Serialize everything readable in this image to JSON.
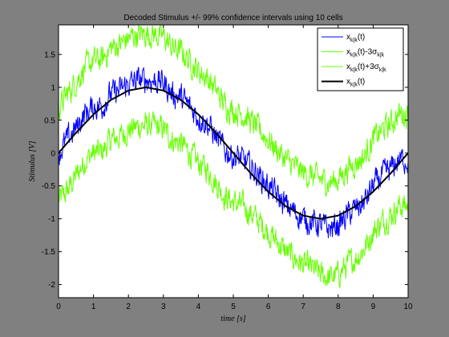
{
  "colors": {
    "figure_background": "#808080",
    "axes_background": "#ffffff",
    "estimate": "#0000ff",
    "lower_bound": "#66ff00",
    "upper_bound": "#66ff00",
    "true_signal": "#000000"
  },
  "chart_data": {
    "type": "line",
    "title": "Decoded Stimulus +/- 99% confidence intervals using 10 cells",
    "xlabel": "time [s]",
    "ylabel": "Stimulus [V]",
    "xlim": [
      0,
      10
    ],
    "ylim": [
      -2.2,
      1.95
    ],
    "xticks": [
      "0",
      "1",
      "2",
      "3",
      "4",
      "5",
      "6",
      "7",
      "8",
      "9",
      "10"
    ],
    "yticks": [
      "-2",
      "-1.5",
      "-1",
      "-0.5",
      "0",
      "0.5",
      "1",
      "1.5"
    ],
    "grid": false,
    "legend_position": "top-right",
    "legend": [
      {
        "main": "x",
        "sub": "k|k",
        "suffix": "(t)",
        "sigma": ""
      },
      {
        "main": "x",
        "sub": "k|k",
        "suffix": "(t)-3",
        "sigma": "σ",
        "sigma_sub": "k|k"
      },
      {
        "main": "x",
        "sub": "k|k",
        "suffix": "(t)+3",
        "sigma": "σ",
        "sigma_sub": "k|k"
      },
      {
        "main": "x",
        "sub": "k|k",
        "suffix": "(t)",
        "sigma": ""
      }
    ],
    "series": [
      {
        "role": "estimate",
        "x": [
          0,
          0.25,
          0.5,
          0.75,
          1,
          1.25,
          1.5,
          1.75,
          2,
          2.25,
          2.5,
          2.75,
          3,
          3.25,
          3.5,
          3.75,
          4,
          4.25,
          4.5,
          4.75,
          5,
          5.25,
          5.5,
          5.75,
          6,
          6.25,
          6.5,
          6.75,
          7,
          7.25,
          7.5,
          7.75,
          8,
          8.25,
          8.5,
          8.75,
          9,
          9.25,
          9.5,
          9.75,
          10
        ],
        "y": [
          -0.02,
          0.2,
          0.38,
          0.6,
          0.7,
          0.72,
          0.9,
          0.95,
          1.05,
          1.1,
          1.12,
          1.1,
          1.07,
          0.9,
          0.85,
          0.7,
          0.55,
          0.45,
          0.25,
          0.05,
          -0.05,
          -0.1,
          -0.22,
          -0.35,
          -0.5,
          -0.65,
          -0.8,
          -0.9,
          -1.0,
          -1.05,
          -1.1,
          -1.15,
          -1.1,
          -0.95,
          -0.85,
          -0.75,
          -0.5,
          -0.35,
          -0.25,
          -0.1,
          -0.1
        ]
      },
      {
        "role": "lower_bound",
        "x": [
          0,
          0.25,
          0.5,
          0.75,
          1,
          1.25,
          1.5,
          1.75,
          2,
          2.25,
          2.5,
          2.75,
          3,
          3.25,
          3.5,
          3.75,
          4,
          4.25,
          4.5,
          4.75,
          5,
          5.25,
          5.5,
          5.75,
          6,
          6.25,
          6.5,
          6.75,
          7,
          7.25,
          7.5,
          7.75,
          8,
          8.25,
          8.5,
          8.75,
          9,
          9.25,
          9.5,
          9.75,
          10
        ],
        "y": [
          -0.72,
          -0.58,
          -0.35,
          -0.12,
          0.0,
          0.02,
          0.2,
          0.25,
          0.35,
          0.4,
          0.42,
          0.4,
          0.37,
          0.2,
          0.15,
          0.0,
          -0.15,
          -0.25,
          -0.45,
          -0.65,
          -0.75,
          -0.8,
          -0.92,
          -1.05,
          -1.2,
          -1.35,
          -1.5,
          -1.6,
          -1.7,
          -1.75,
          -1.85,
          -1.9,
          -1.85,
          -1.7,
          -1.6,
          -1.45,
          -1.2,
          -1.05,
          -0.95,
          -0.8,
          -0.8
        ]
      },
      {
        "role": "upper_bound",
        "x": [
          0,
          0.25,
          0.5,
          0.75,
          1,
          1.25,
          1.5,
          1.75,
          2,
          2.25,
          2.5,
          2.75,
          3,
          3.25,
          3.5,
          3.75,
          4,
          4.25,
          4.5,
          4.75,
          5,
          5.25,
          5.5,
          5.75,
          6,
          6.25,
          6.5,
          6.75,
          7,
          7.25,
          7.5,
          7.75,
          8,
          8.25,
          8.5,
          8.75,
          9,
          9.25,
          9.5,
          9.75,
          10
        ],
        "y": [
          0.68,
          0.9,
          1.08,
          1.3,
          1.4,
          1.42,
          1.6,
          1.65,
          1.75,
          1.8,
          1.82,
          1.8,
          1.77,
          1.6,
          1.55,
          1.4,
          1.25,
          1.15,
          0.95,
          0.75,
          0.65,
          0.6,
          0.48,
          0.35,
          0.2,
          0.05,
          -0.1,
          -0.2,
          -0.3,
          -0.35,
          -0.4,
          -0.45,
          -0.4,
          -0.25,
          -0.15,
          -0.05,
          0.2,
          0.35,
          0.45,
          0.6,
          0.6
        ]
      },
      {
        "role": "true_signal",
        "function": "sin(2*pi*t/10)",
        "x": [
          0,
          0.5,
          1,
          1.5,
          2,
          2.5,
          3,
          3.5,
          4,
          4.5,
          5,
          5.5,
          6,
          6.5,
          7,
          7.5,
          8,
          8.5,
          9,
          9.5,
          10
        ],
        "y": [
          0,
          0.309,
          0.588,
          0.809,
          0.951,
          1,
          0.951,
          0.809,
          0.588,
          0.309,
          0,
          -0.309,
          -0.588,
          -0.809,
          -0.951,
          -1,
          -0.951,
          -0.809,
          -0.588,
          -0.309,
          0
        ]
      }
    ]
  }
}
